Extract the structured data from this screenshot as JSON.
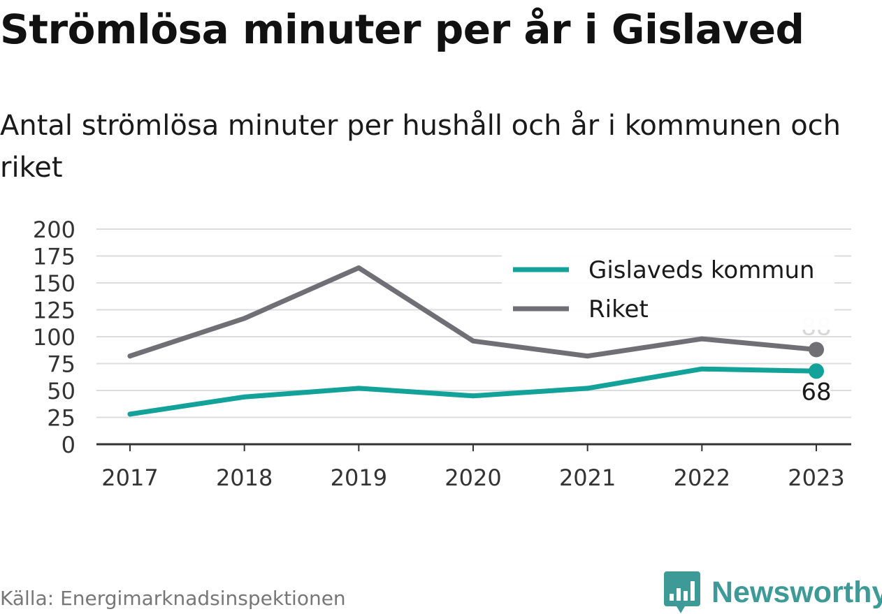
{
  "title": "Strömlösa minuter per år i Gislaved",
  "subtitle": "Antal strömlösa minuter per hushåll och år i kommunen och riket",
  "source": "Källa: Energimarknadsinspektionen",
  "brand": {
    "name": "Newsworthy",
    "logo_icon": "bar-chart-badge-icon",
    "color": "#3d9a96"
  },
  "chart_data": {
    "type": "line",
    "categories": [
      "2017",
      "2018",
      "2019",
      "2020",
      "2021",
      "2022",
      "2023"
    ],
    "y_ticks": [
      "0",
      "25",
      "50",
      "75",
      "100",
      "125",
      "150",
      "175",
      "200"
    ],
    "ylim": [
      0,
      200
    ],
    "grid": true,
    "legend_position": "top-right",
    "series": [
      {
        "name": "Gislaveds kommun",
        "color": "#13a299",
        "values": [
          28,
          44,
          52,
          45,
          52,
          70,
          68
        ],
        "end_label": "68"
      },
      {
        "name": "Riket",
        "color": "#6f6f75",
        "values": [
          82,
          117,
          164,
          96,
          82,
          98,
          88
        ],
        "end_label": "88"
      }
    ]
  }
}
